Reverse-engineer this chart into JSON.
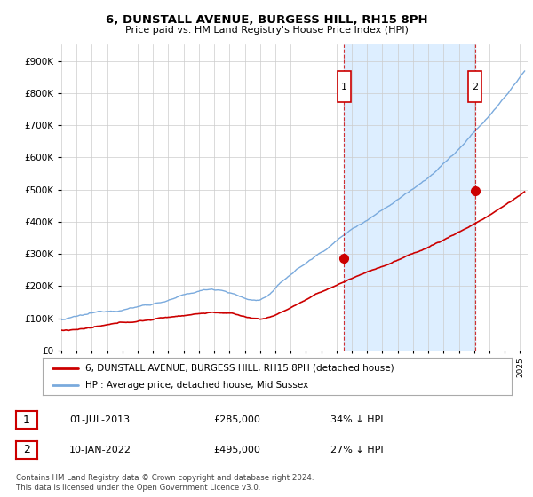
{
  "title": "6, DUNSTALL AVENUE, BURGESS HILL, RH15 8PH",
  "subtitle": "Price paid vs. HM Land Registry's House Price Index (HPI)",
  "hpi_color": "#7aaadd",
  "price_color": "#cc0000",
  "legend_line1": "6, DUNSTALL AVENUE, BURGESS HILL, RH15 8PH (detached house)",
  "legend_line2": "HPI: Average price, detached house, Mid Sussex",
  "table_row1": [
    "1",
    "01-JUL-2013",
    "£285,000",
    "34% ↓ HPI"
  ],
  "table_row2": [
    "2",
    "10-JAN-2022",
    "£495,000",
    "27% ↓ HPI"
  ],
  "footnote1": "Contains HM Land Registry data © Crown copyright and database right 2024.",
  "footnote2": "This data is licensed under the Open Government Licence v3.0.",
  "ylim_max": 950000,
  "background_color": "#ffffff",
  "marker1_year": 2013.5,
  "marker2_year": 2022.05,
  "marker1_price": 285000,
  "marker2_price": 495000,
  "shade_color": "#ddeeff",
  "chart_bg": "#ffffff",
  "grid_color": "#cccccc"
}
